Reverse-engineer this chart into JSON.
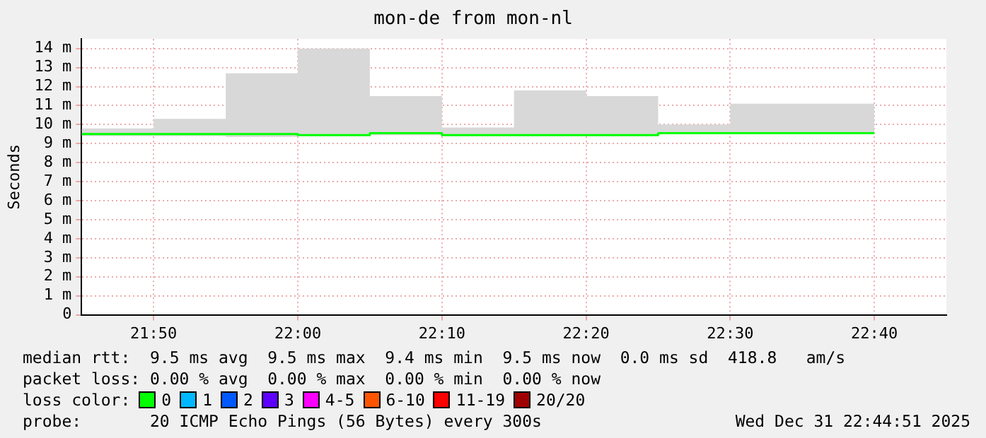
{
  "chart_data": {
    "type": "step",
    "title": "mon-de from mon-nl",
    "ylabel": "Seconds",
    "x": [
      21.75,
      21.8333,
      21.9167,
      22,
      22.0833,
      22.1667,
      22.25,
      22.3333,
      22.4167,
      22.5,
      22.5833,
      22.6667
    ],
    "series": [
      {
        "color": "#00ff00",
        "values": [
          9.5,
          9.5,
          9.5,
          9.5,
          9.45,
          9.55,
          9.45,
          9.45,
          9.45,
          9.55,
          9.55,
          9.55
        ],
        "lower": [
          9.4,
          9.4,
          9.4,
          9.35,
          9.4,
          9.45,
          9.4,
          9.4,
          9.4,
          9.5,
          9.5,
          9.5
        ],
        "upper": [
          9.7,
          9.8,
          10.3,
          12.7,
          14.0,
          11.5,
          9.85,
          11.8,
          11.5,
          10.0,
          11.1,
          11.1
        ]
      }
    ],
    "xlim": [
      21.75,
      22.75
    ],
    "xticks": [
      {
        "value": 21.8333,
        "label": "21:50"
      },
      {
        "value": 22,
        "label": "22:00"
      },
      {
        "value": 22.1667,
        "label": "22:10"
      },
      {
        "value": 22.3333,
        "label": "22:20"
      },
      {
        "value": 22.5,
        "label": "22:30"
      },
      {
        "value": 22.6667,
        "label": "22:40"
      }
    ],
    "ylim": [
      0,
      14.5
    ],
    "yticks": [
      0,
      {
        "value": 1,
        "label": "1 m"
      },
      {
        "value": 2,
        "label": "2 m"
      },
      {
        "value": 3,
        "label": "3 m"
      },
      {
        "value": 4,
        "label": "4 m"
      },
      {
        "value": 5,
        "label": "5 m"
      },
      {
        "value": 6,
        "label": "6 m"
      },
      {
        "value": 7,
        "label": "7 m"
      },
      {
        "value": 8,
        "label": "8 m"
      },
      {
        "value": 9,
        "label": "9 m"
      },
      {
        "value": 10,
        "label": "10 m"
      },
      {
        "value": 11,
        "label": "11 m"
      },
      {
        "value": 12,
        "label": "12 m"
      },
      {
        "value": 13,
        "label": "13 m"
      },
      {
        "value": 14,
        "label": "14 m"
      }
    ],
    "grid": true,
    "annotations": [
      "median rtt:  9.5 ms avg  9.5 ms max  9.4 ms min  9.5 ms now  0.0 ms sd  418.8   am/s",
      "packet loss: 0.00 % avg  0.00 % max  0.00 % min  0.00 % now",
      "loss color:",
      "0",
      "1",
      "2",
      "3",
      "4-5",
      "6-10",
      "11-19",
      "20/20",
      "probe:       20 ICMP Echo Pings (56 Bytes) every 300s",
      "Wed Dec 31 22:44:51 2025"
    ]
  }
}
